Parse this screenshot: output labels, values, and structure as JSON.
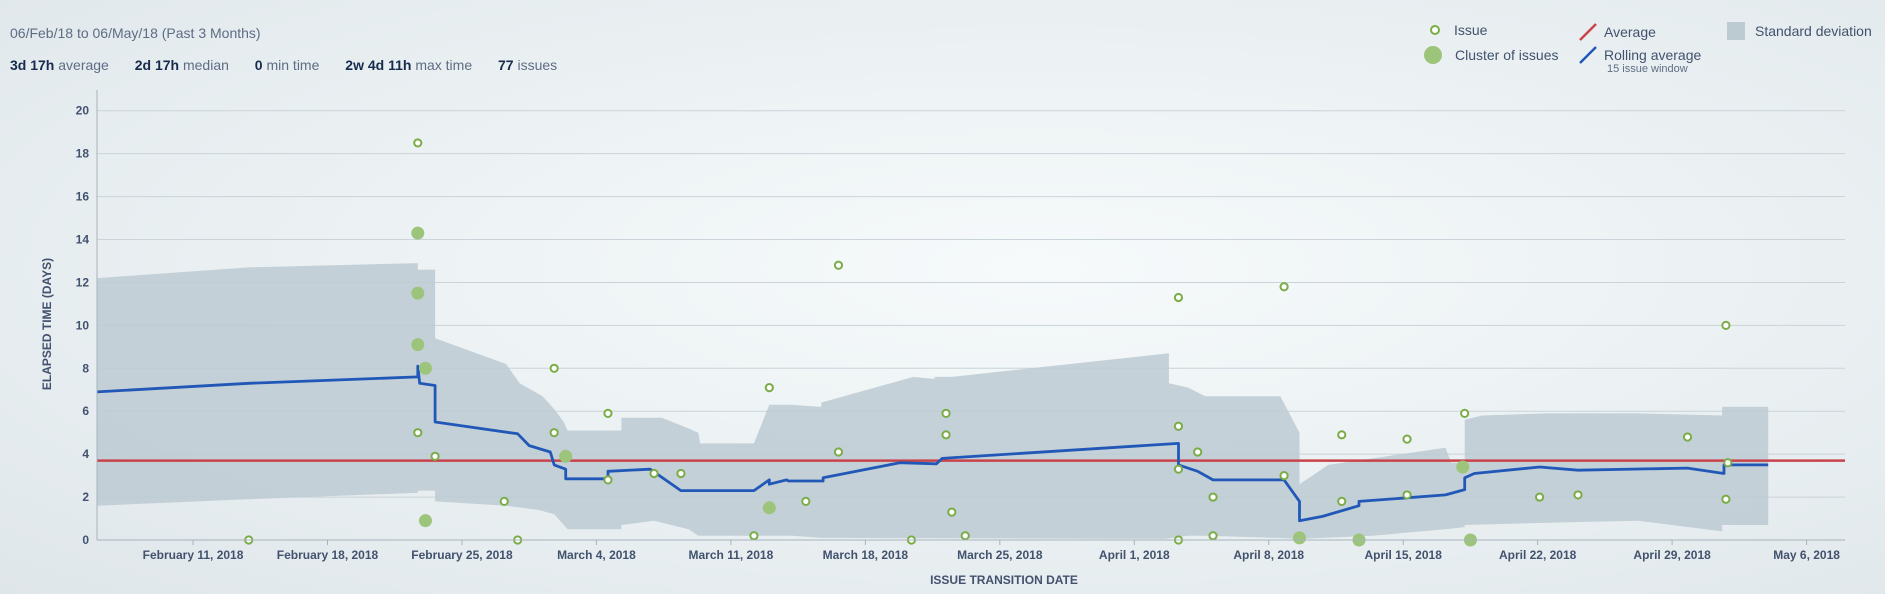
{
  "header": {
    "date_range": "06/Feb/18 to 06/May/18 (Past 3 Months)",
    "stats": [
      {
        "value": "3d 17h",
        "label": "average"
      },
      {
        "value": "2d 17h",
        "label": "median"
      },
      {
        "value": "0",
        "label": "min time"
      },
      {
        "value": "2w 4d 11h",
        "label": "max time"
      },
      {
        "value": "77",
        "label": "issues"
      }
    ]
  },
  "legend": {
    "issue": "Issue",
    "cluster": "Cluster of issues",
    "average": "Average",
    "rolling": "Rolling average",
    "rolling_sub": "15 issue window",
    "stddev": "Standard deviation"
  },
  "colors": {
    "average": "#c9434b",
    "rolling": "#2158b8",
    "issue": "#7aac47",
    "cluster": "#9cc47a",
    "stddev": "#bccad2"
  },
  "chart_data": {
    "type": "scatter",
    "title": "",
    "xlabel": "ISSUE TRANSITION DATE",
    "ylabel": "ELAPSED TIME (DAYS)",
    "xlim": [
      "2018-02-06",
      "2018-05-08"
    ],
    "ylim": [
      0,
      20.5
    ],
    "yticks": [
      0,
      2,
      4,
      6,
      8,
      10,
      12,
      14,
      16,
      18,
      20
    ],
    "xticks": [
      {
        "date": "2018-02-11",
        "label": "February 11, 2018"
      },
      {
        "date": "2018-02-18",
        "label": "February 18, 2018"
      },
      {
        "date": "2018-02-25",
        "label": "February 25, 2018"
      },
      {
        "date": "2018-03-04",
        "label": "March 4, 2018"
      },
      {
        "date": "2018-03-11",
        "label": "March 11, 2018"
      },
      {
        "date": "2018-03-18",
        "label": "March 18, 2018"
      },
      {
        "date": "2018-03-25",
        "label": "March 25, 2018"
      },
      {
        "date": "2018-04-01",
        "label": "April 1, 2018"
      },
      {
        "date": "2018-04-08",
        "label": "April 8, 2018"
      },
      {
        "date": "2018-04-15",
        "label": "April 15, 2018"
      },
      {
        "date": "2018-04-22",
        "label": "April 22, 2018"
      },
      {
        "date": "2018-04-29",
        "label": "April 29, 2018"
      },
      {
        "date": "2018-05-06",
        "label": "May 6, 2018"
      }
    ],
    "average": 3.7,
    "issues": [
      [
        7.9,
        0
      ],
      [
        16.7,
        18.5
      ],
      [
        16.7,
        5.0
      ],
      [
        17.6,
        3.9
      ],
      [
        21.2,
        1.8
      ],
      [
        21.9,
        0
      ],
      [
        23.8,
        8.0
      ],
      [
        23.8,
        5.0
      ],
      [
        26.6,
        5.9
      ],
      [
        26.6,
        2.8
      ],
      [
        29.0,
        3.1
      ],
      [
        30.4,
        3.1
      ],
      [
        34.2,
        0.2
      ],
      [
        35.0,
        7.1
      ],
      [
        36.9,
        1.8
      ],
      [
        38.6,
        12.8
      ],
      [
        38.6,
        4.1
      ],
      [
        42.4,
        0
      ],
      [
        44.2,
        5.9
      ],
      [
        44.2,
        4.9
      ],
      [
        44.5,
        1.3
      ],
      [
        45.2,
        0.2
      ],
      [
        56.3,
        11.3
      ],
      [
        56.3,
        5.3
      ],
      [
        56.3,
        3.3
      ],
      [
        56.3,
        0
      ],
      [
        57.3,
        4.1
      ],
      [
        58.1,
        2.0
      ],
      [
        58.1,
        0.2
      ],
      [
        61.8,
        11.8
      ],
      [
        61.8,
        3.0
      ],
      [
        64.8,
        4.9
      ],
      [
        64.8,
        1.8
      ],
      [
        68.2,
        4.7
      ],
      [
        68.2,
        2.1
      ],
      [
        71.2,
        5.9
      ],
      [
        75.1,
        2.0
      ],
      [
        77.1,
        2.1
      ],
      [
        82.8,
        4.8
      ],
      [
        84.8,
        10.0
      ],
      [
        84.8,
        1.9
      ],
      [
        84.9,
        3.6
      ]
    ],
    "clusters": [
      [
        16.7,
        14.3
      ],
      [
        16.7,
        11.5
      ],
      [
        16.7,
        9.1
      ],
      [
        17.1,
        8.0
      ],
      [
        17.1,
        0.9
      ],
      [
        24.4,
        3.9
      ],
      [
        35.0,
        1.5
      ],
      [
        62.6,
        0.1
      ],
      [
        65.7,
        0
      ],
      [
        71.1,
        3.4
      ],
      [
        71.5,
        0
      ]
    ],
    "rolling_average": [
      [
        0,
        6.9
      ],
      [
        7.9,
        7.3
      ],
      [
        16.7,
        7.6
      ],
      [
        16.7,
        8.1
      ],
      [
        16.8,
        7.3
      ],
      [
        17.6,
        7.2
      ],
      [
        17.6,
        5.5
      ],
      [
        21.9,
        4.95
      ],
      [
        22.5,
        4.4
      ],
      [
        23.6,
        4.1
      ],
      [
        23.8,
        3.5
      ],
      [
        24.4,
        3.3
      ],
      [
        24.4,
        2.85
      ],
      [
        26.6,
        2.85
      ],
      [
        26.6,
        3.2
      ],
      [
        28.8,
        3.3
      ],
      [
        30.4,
        2.3
      ],
      [
        34.2,
        2.3
      ],
      [
        35.0,
        2.8
      ],
      [
        35.0,
        2.6
      ],
      [
        35.9,
        2.8
      ],
      [
        36.0,
        2.75
      ],
      [
        37.8,
        2.75
      ],
      [
        37.8,
        2.9
      ],
      [
        41.8,
        3.6
      ],
      [
        43.7,
        3.55
      ],
      [
        44.0,
        3.8
      ],
      [
        56.3,
        4.5
      ],
      [
        56.3,
        3.5
      ],
      [
        57.3,
        3.2
      ],
      [
        58.1,
        2.8
      ],
      [
        61.8,
        2.8
      ],
      [
        62.6,
        1.8
      ],
      [
        62.6,
        0.9
      ],
      [
        63.8,
        1.1
      ],
      [
        65.7,
        1.6
      ],
      [
        65.7,
        1.8
      ],
      [
        70.2,
        2.1
      ],
      [
        71.2,
        2.35
      ],
      [
        71.2,
        2.9
      ],
      [
        71.7,
        3.1
      ],
      [
        75.1,
        3.4
      ],
      [
        77.1,
        3.25
      ],
      [
        82.8,
        3.35
      ],
      [
        84.7,
        3.1
      ],
      [
        84.7,
        3.5
      ],
      [
        87,
        3.5
      ]
    ],
    "std_upper": [
      [
        0,
        12.2
      ],
      [
        7.9,
        12.7
      ],
      [
        16.7,
        12.9
      ],
      [
        16.7,
        12.6
      ],
      [
        17.6,
        12.6
      ],
      [
        17.6,
        9.4
      ],
      [
        21.3,
        8.2
      ],
      [
        22.0,
        7.3
      ],
      [
        23.2,
        6.7
      ],
      [
        23.8,
        6.1
      ],
      [
        24.3,
        5.5
      ],
      [
        24.5,
        5.1
      ],
      [
        27.3,
        5.1
      ],
      [
        27.3,
        5.7
      ],
      [
        29.4,
        5.7
      ],
      [
        30.8,
        5.2
      ],
      [
        31.3,
        5.0
      ],
      [
        31.4,
        4.5
      ],
      [
        34.2,
        4.5
      ],
      [
        35.0,
        6.3
      ],
      [
        36.1,
        6.3
      ],
      [
        37.7,
        6.2
      ],
      [
        37.7,
        6.4
      ],
      [
        42.5,
        7.6
      ],
      [
        43.6,
        7.5
      ],
      [
        43.6,
        7.6
      ],
      [
        44.5,
        7.6
      ],
      [
        55.8,
        8.7
      ],
      [
        55.8,
        7.3
      ],
      [
        56.8,
        7.1
      ],
      [
        57.7,
        6.7
      ],
      [
        61.6,
        6.7
      ],
      [
        62.6,
        5.0
      ],
      [
        62.6,
        2.6
      ],
      [
        64.1,
        3.5
      ],
      [
        66.4,
        3.8
      ],
      [
        70.2,
        4.3
      ],
      [
        70.5,
        3.6
      ],
      [
        71.2,
        3.6
      ],
      [
        71.2,
        5.6
      ],
      [
        72.1,
        5.8
      ],
      [
        75.5,
        5.9
      ],
      [
        80.2,
        5.9
      ],
      [
        84.6,
        5.8
      ],
      [
        84.6,
        6.2
      ],
      [
        87,
        6.2
      ]
    ],
    "std_lower": [
      [
        0,
        1.6
      ],
      [
        7.9,
        1.9
      ],
      [
        16.7,
        2.2
      ],
      [
        16.7,
        2.3
      ],
      [
        17.6,
        2.3
      ],
      [
        17.6,
        1.8
      ],
      [
        21.3,
        1.6
      ],
      [
        23.0,
        1.4
      ],
      [
        23.8,
        1.2
      ],
      [
        24.4,
        0.6
      ],
      [
        24.5,
        0.5
      ],
      [
        27.3,
        0.5
      ],
      [
        27.3,
        0.7
      ],
      [
        29.0,
        0.9
      ],
      [
        30.8,
        0.5
      ],
      [
        31.3,
        0.2
      ],
      [
        36.2,
        0.2
      ],
      [
        37.7,
        0.1
      ],
      [
        55.6,
        0.05
      ],
      [
        56.8,
        0.2
      ],
      [
        57.7,
        0.2
      ],
      [
        61.4,
        0.1
      ],
      [
        62.6,
        0.05
      ],
      [
        66.4,
        0.2
      ],
      [
        70.2,
        0.5
      ],
      [
        71.2,
        0.6
      ],
      [
        71.2,
        0.7
      ],
      [
        75.5,
        0.8
      ],
      [
        80.2,
        0.9
      ],
      [
        84.6,
        0.4
      ],
      [
        84.6,
        0.7
      ],
      [
        87,
        0.7
      ]
    ]
  }
}
